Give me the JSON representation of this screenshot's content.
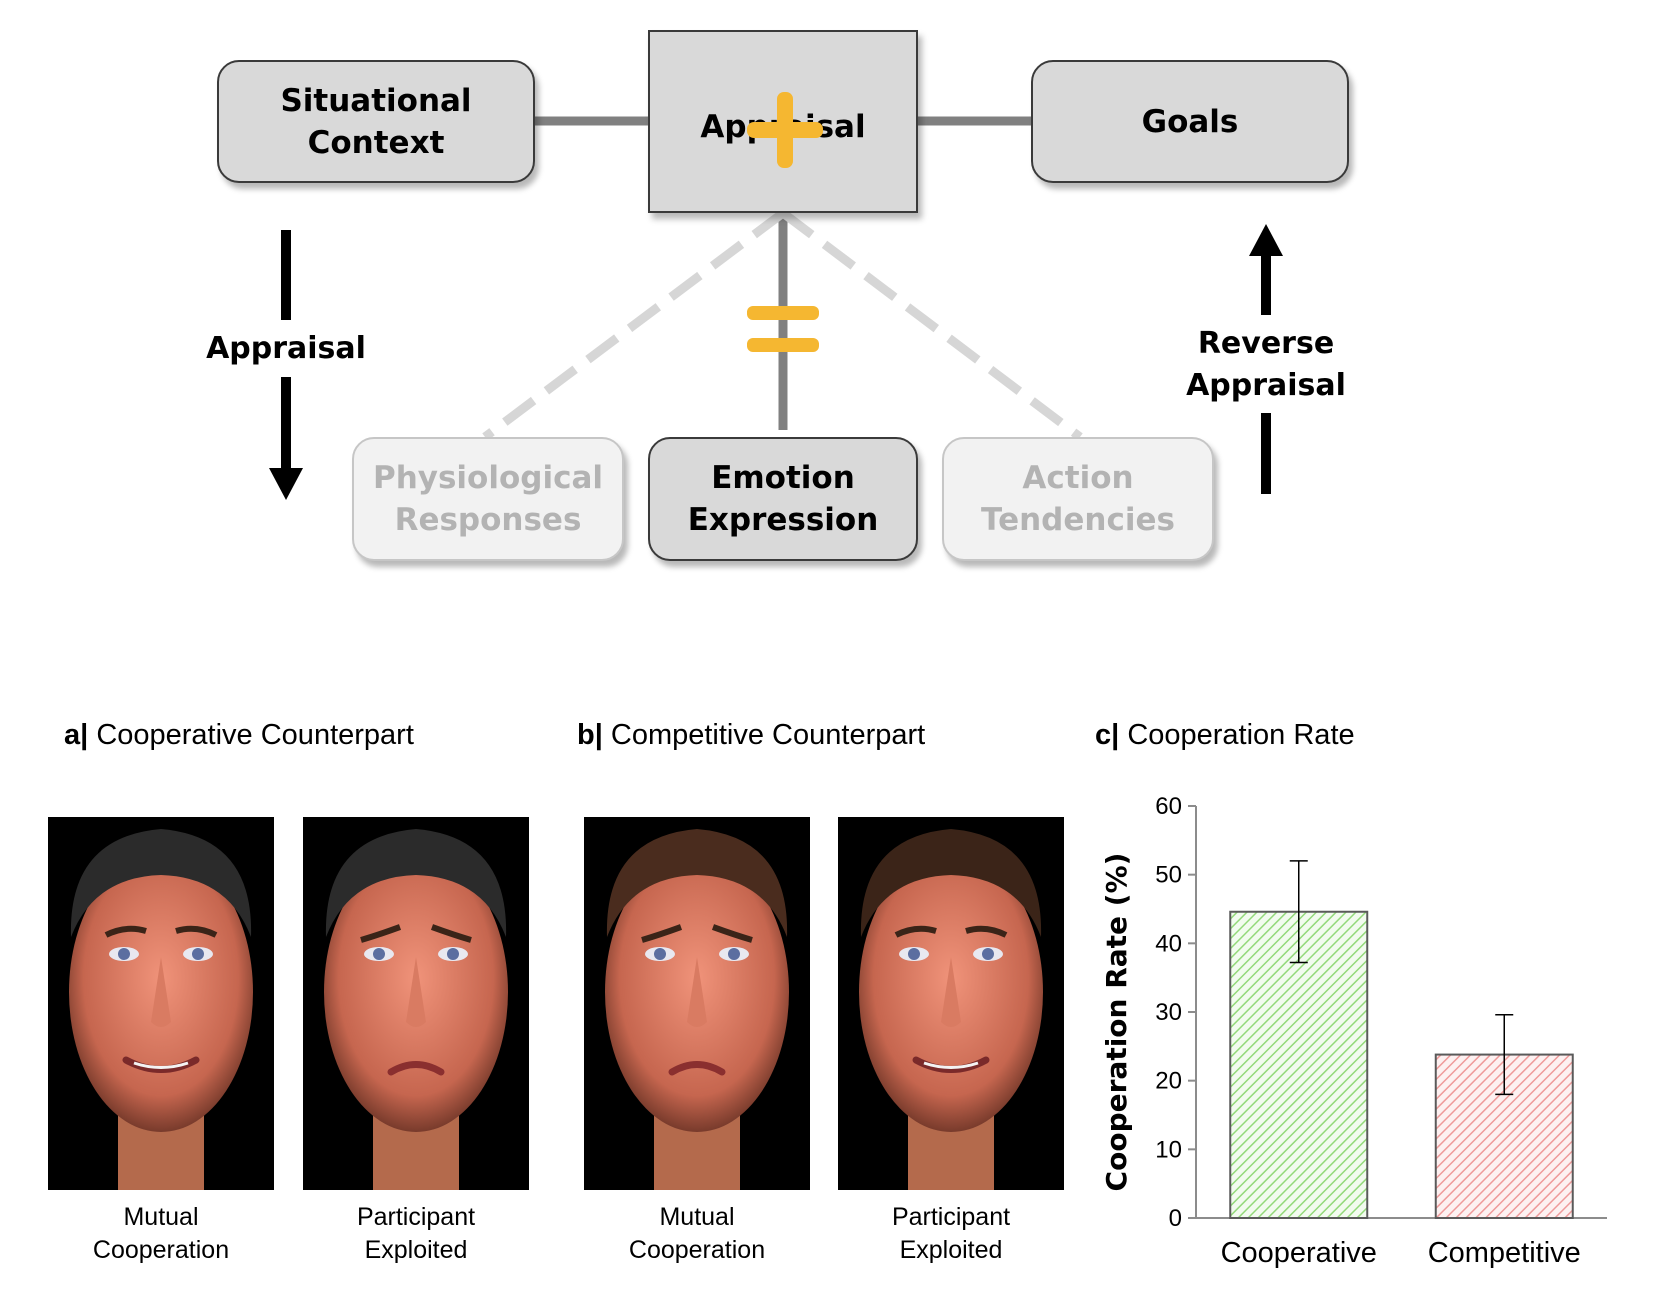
{
  "diagram": {
    "situational_context": "Situational Context",
    "appraisal_box": "Appraisal",
    "goals": "Goals",
    "physiological": [
      "Physiological",
      "Responses"
    ],
    "emotion_expression": [
      "Emotion",
      "Expression"
    ],
    "action_tendencies": [
      "Action",
      "Tendencies"
    ],
    "appraisal_arrow_label": "Appraisal",
    "reverse_appraisal_label": [
      "Reverse",
      "Appraisal"
    ],
    "accent_color": "#f5b731",
    "plus_icon": "plus-icon",
    "equals_icon": "equals-icon"
  },
  "panels": {
    "a": {
      "letter": "a|",
      "title": "Cooperative Counterpart",
      "faces": [
        {
          "caption": [
            "Mutual",
            "Cooperation"
          ],
          "expression": "smile"
        },
        {
          "caption": [
            "Participant",
            "Exploited"
          ],
          "expression": "sad"
        }
      ]
    },
    "b": {
      "letter": "b|",
      "title": "Competitive Counterpart",
      "faces": [
        {
          "caption": [
            "Mutual",
            "Cooperation"
          ],
          "expression": "sad"
        },
        {
          "caption": [
            "Participant",
            "Exploited"
          ],
          "expression": "smile"
        }
      ]
    },
    "c": {
      "letter": "c|",
      "title": "Cooperation Rate"
    }
  },
  "chart_data": {
    "type": "bar",
    "title": "Cooperation Rate",
    "categories": [
      "Cooperative",
      "Competitive"
    ],
    "values": [
      44.6,
      23.8
    ],
    "error_low": [
      37.2,
      18.0
    ],
    "error_high": [
      52.0,
      29.6
    ],
    "ylabel": "Cooperation Rate (%)",
    "ylim": [
      0,
      60
    ],
    "yticks": [
      "0",
      "10",
      "20",
      "30",
      "40",
      "50",
      "60"
    ],
    "colors": [
      "#93d97a",
      "#ef9a9a"
    ],
    "grid": false
  }
}
